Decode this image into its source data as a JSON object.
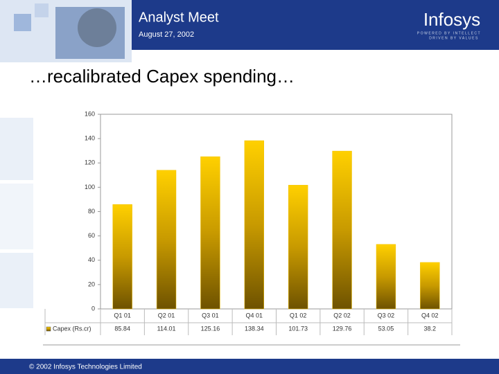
{
  "header": {
    "title": "Analyst Meet",
    "date": "August 27, 2002",
    "logo": "Infosys",
    "tagline_1": "POWERED BY INTELLECT",
    "tagline_2": "DRIVEN BY VALUES"
  },
  "footer": "© 2002 Infosys Technologies Limited",
  "chart_data": {
    "type": "bar",
    "title": "…recalibrated Capex spending…",
    "categories": [
      "Q1 01",
      "Q2 01",
      "Q3 01",
      "Q4 01",
      "Q1 02",
      "Q2 02",
      "Q3 02",
      "Q4 02"
    ],
    "series": [
      {
        "name": "Capex (Rs.cr)",
        "color": "#f2c200",
        "values": [
          85.84,
          114.01,
          125.16,
          138.34,
          101.73,
          129.76,
          53.05,
          38.2
        ]
      }
    ],
    "ylim": [
      0,
      160
    ],
    "yticks": [
      0,
      20,
      40,
      60,
      80,
      100,
      120,
      140,
      160
    ],
    "grid": false
  }
}
